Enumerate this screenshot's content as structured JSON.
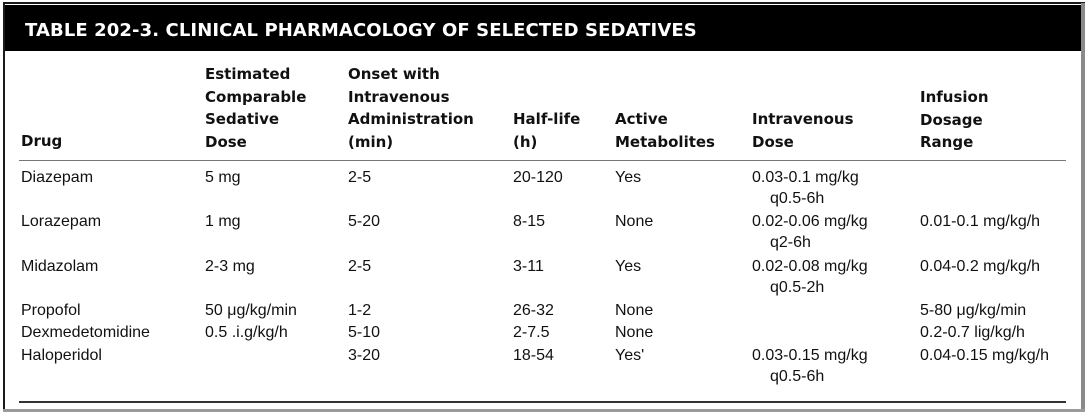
{
  "table": {
    "title": "TABLE 202-3. CLINICAL PHARMACOLOGY OF SELECTED SEDATIVES",
    "headers": {
      "drug": [
        "Drug"
      ],
      "dose": [
        "Estimated",
        "Comparable",
        "Sedative",
        "Dose"
      ],
      "onset": [
        "Onset with",
        "Intravenous",
        "Administration",
        "(min)"
      ],
      "halflife": [
        "Half-life",
        "(h)"
      ],
      "metabolites": [
        "Active",
        "Metabolites"
      ],
      "ivdose": [
        "Intravenous",
        "Dose"
      ],
      "infusion": [
        "Infusion",
        "Dosage",
        "Range"
      ]
    },
    "rows": [
      {
        "drug": "Diazepam",
        "dose": "5 mg",
        "onset": "2-5",
        "halflife": "20-120",
        "metabolites": "Yes",
        "ivdose": [
          "0.03-0.1 mg/kg",
          "q0.5-6h"
        ],
        "infusion": ""
      },
      {
        "drug": "Lorazepam",
        "dose": "1 mg",
        "onset": "5-20",
        "halflife": "8-15",
        "metabolites": "None",
        "ivdose": [
          "0.02-0.06 mg/kg",
          "q2-6h"
        ],
        "infusion": "0.01-0.1 mg/kg/h"
      },
      {
        "drug": "Midazolam",
        "dose": "2-3 mg",
        "onset": "2-5",
        "halflife": "3-11",
        "metabolites": "Yes",
        "ivdose": [
          "0.02-0.08 mg/kg",
          "q0.5-2h"
        ],
        "infusion": "0.04-0.2 mg/kg/h"
      },
      {
        "drug": "Propofol",
        "dose": "50 μg/kg/min",
        "onset": "1-2",
        "halflife": "26-32",
        "metabolites": "None",
        "ivdose": [
          "",
          ""
        ],
        "infusion": "5-80 μg/kg/min"
      },
      {
        "drug": "Dexmedetomidine",
        "dose": "0.5 .i.g/kg/h",
        "onset": "5-10",
        "halflife": "2-7.5",
        "metabolites": "None",
        "ivdose": [
          "",
          ""
        ],
        "infusion": "0.2-0.7 lig/kg/h"
      },
      {
        "drug": "Haloperidol",
        "dose": "",
        "onset": "3-20",
        "halflife": "18-54",
        "metabolites": "Yes'",
        "ivdose": [
          "0.03-0.15 mg/kg",
          "q0.5-6h"
        ],
        "infusion": "0.04-0.15 mg/kg/h"
      }
    ]
  }
}
